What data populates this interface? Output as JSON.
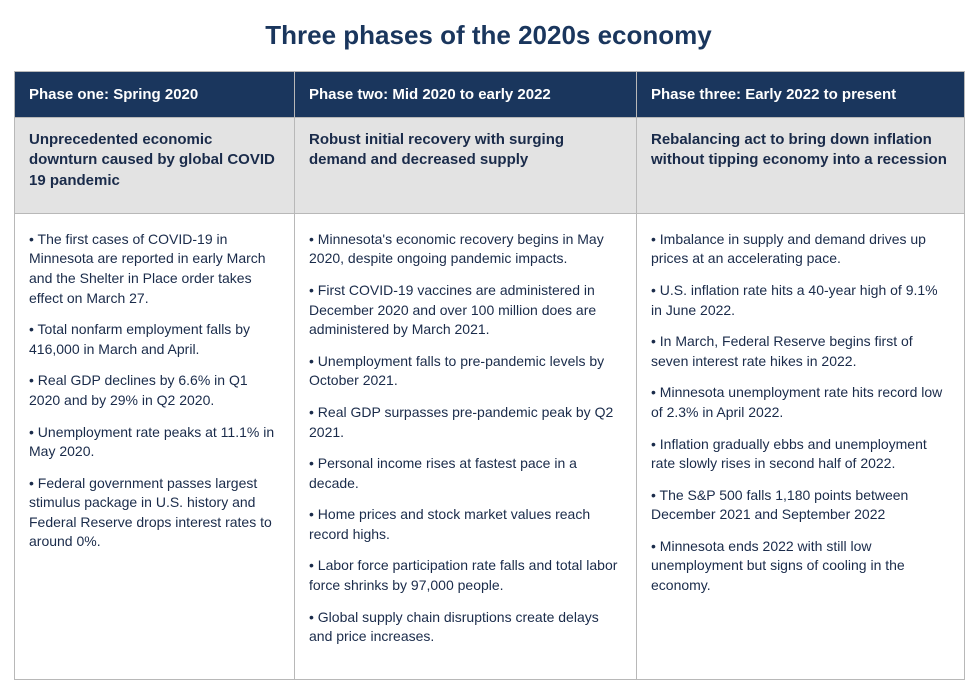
{
  "title": "Three phases of the 2020s economy",
  "colors": {
    "title_color": "#1a365d",
    "header_bg": "#1a365d",
    "header_text": "#ffffff",
    "sub_bg": "#e3e3e3",
    "body_text": "#1a2b4a",
    "border": "#b8b8b8",
    "page_bg": "#ffffff"
  },
  "columns": [
    {
      "header": "Phase one: Spring 2020",
      "subheader": "Unprecedented economic downturn caused by global COVID 19 pandemic",
      "bullets": [
        "The first cases of COVID-19 in Minnesota are reported in early March and the Shelter in Place order takes effect on March 27.",
        "Total nonfarm employment falls by 416,000 in March and April.",
        "Real GDP declines by 6.6% in Q1 2020 and by 29% in Q2 2020.",
        "Unemployment rate peaks at 11.1% in May 2020.",
        "Federal government passes largest stimulus package in U.S. history and Federal Reserve drops interest rates to around 0%."
      ]
    },
    {
      "header": "Phase two: Mid 2020 to early 2022",
      "subheader": "Robust initial recovery with surging demand and decreased supply",
      "bullets": [
        "Minnesota's economic recovery begins in May 2020, despite ongoing pandemic impacts.",
        "First COVID-19 vaccines are administered in December 2020 and over 100 million does are administered by March 2021.",
        "Unemployment falls to pre-pandemic levels by October 2021.",
        "Real GDP surpasses pre-pandemic peak by Q2 2021.",
        "Personal income rises at fastest pace in a decade.",
        "Home prices and stock market values reach record highs.",
        "Labor force participation rate falls and total labor force shrinks by 97,000 people.",
        "Global supply chain disruptions create delays and price increases."
      ]
    },
    {
      "header": "Phase three: Early 2022 to present",
      "subheader": "Rebalancing act to bring down inflation without tipping economy into a recession",
      "bullets": [
        "Imbalance in supply and demand drives up prices at an accelerating pace.",
        "U.S. inflation rate hits a 40-year high of 9.1% in June 2022.",
        "In March, Federal Reserve begins first of seven interest rate hikes in 2022.",
        "Minnesota unemployment rate hits record low of 2.3% in April 2022.",
        "Inflation gradually ebbs and unemployment rate slowly rises in second half of 2022.",
        "The S&P 500 falls 1,180 points between December 2021 and September 2022",
        "Minnesota ends 2022 with still low unemployment but signs of cooling in the economy."
      ]
    }
  ]
}
